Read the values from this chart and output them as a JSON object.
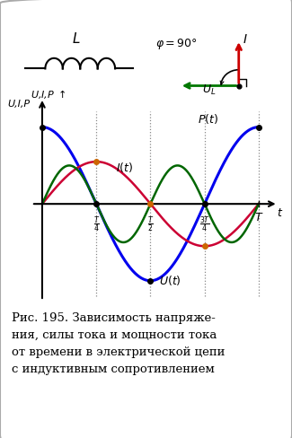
{
  "bg_color": "#ffffff",
  "border_color": "#999999",
  "ylabel": "U,I,P",
  "xlabel": "t",
  "U_color": "#0000ee",
  "I_color": "#cc0033",
  "P_color": "#006600",
  "phi_label": "φ = 90°",
  "UL_label": "U_L",
  "I_label": "I",
  "U_amp": 1.0,
  "I_amp": 0.55,
  "P_amp": 0.5,
  "caption": "Рис. 195. Зависимость напряже-\nния, силы тока и мощности тока\nот времени в электрической цепи\nс индуктивным сопротивлением"
}
